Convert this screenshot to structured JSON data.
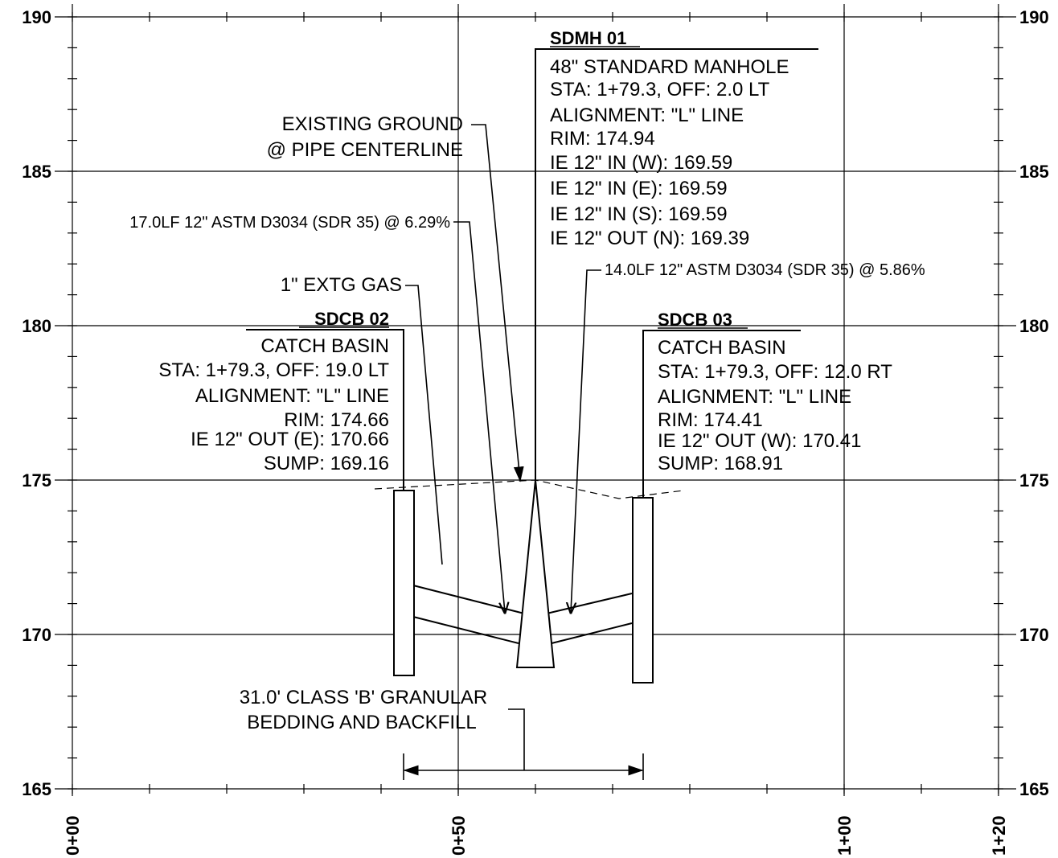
{
  "axes": {
    "y_ticks": [
      "190",
      "185",
      "180",
      "175",
      "170",
      "165"
    ],
    "x_ticks": [
      "0+00",
      "0+50",
      "1+00",
      "1+20"
    ]
  },
  "sdmh01": {
    "title": "SDMH 01",
    "lines": [
      "48\" STANDARD MANHOLE",
      "STA: 1+79.3, OFF: 2.0 LT",
      "ALIGNMENT: \"L\" LINE",
      "RIM: 174.94",
      "IE 12\" IN (W): 169.59",
      "IE 12\" IN (E): 169.59",
      "IE 12\" IN (S): 169.59",
      "IE 12\" OUT (N): 169.39"
    ]
  },
  "sdcb02": {
    "title": "SDCB 02",
    "lines": [
      "CATCH BASIN",
      "STA: 1+79.3, OFF: 19.0 LT",
      "ALIGNMENT: \"L\" LINE",
      "RIM: 174.66",
      "IE 12\" OUT (E): 170.66",
      "SUMP: 169.16"
    ]
  },
  "sdcb03": {
    "title": "SDCB 03",
    "lines": [
      "CATCH BASIN",
      "STA: 1+79.3, OFF: 12.0 RT",
      "ALIGNMENT: \"L\" LINE",
      "RIM: 174.41",
      "IE 12\" OUT (W): 170.41",
      "SUMP: 168.91"
    ]
  },
  "callouts": {
    "existing_ground_1": "EXISTING GROUND",
    "existing_ground_2": "@ PIPE CENTERLINE",
    "pipe_left": "17.0LF 12\" ASTM D3034 (SDR 35) @ 6.29%",
    "pipe_right": "14.0LF 12\" ASTM D3034 (SDR 35) @ 5.86%",
    "gas": "1\" EXTG GAS",
    "bedding_1": "31.0' CLASS 'B' GRANULAR",
    "bedding_2": "BEDDING AND BACKFILL"
  }
}
